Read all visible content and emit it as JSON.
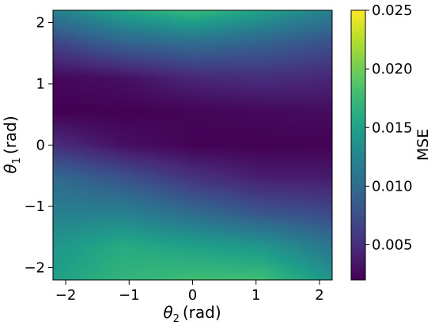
{
  "chart_data": {
    "type": "heatmap",
    "title": "",
    "xlabel": {
      "symbol": "θ",
      "subscript": "2",
      "unit": "(rad)"
    },
    "ylabel": {
      "symbol": "θ",
      "subscript": "1",
      "unit": "(rad)"
    },
    "xlim": [
      -2.2,
      2.2
    ],
    "ylim": [
      -2.2,
      2.2
    ],
    "xticks": [
      -2,
      -1,
      0,
      1,
      2
    ],
    "yticks": [
      -2,
      -1,
      0,
      1,
      2
    ],
    "xtick_labels": [
      "−2",
      "−1",
      "0",
      "1",
      "2"
    ],
    "ytick_labels": [
      "−2",
      "−1",
      "0",
      "1",
      "2"
    ],
    "colorbar": {
      "label": "MSE",
      "colormap": "viridis",
      "vmin": 0.002,
      "vmax": 0.025,
      "ticks": [
        0.005,
        0.01,
        0.015,
        0.02,
        0.025
      ],
      "tick_labels": [
        "0.005",
        "0.010",
        "0.015",
        "0.020",
        "0.025"
      ]
    },
    "theta2_grid": [
      -2.2,
      -1.1,
      0.0,
      1.1,
      2.2
    ],
    "theta1_grid": [
      2.2,
      1.65,
      1.1,
      0.55,
      0.0,
      -0.55,
      -1.1,
      -1.65,
      -2.2
    ],
    "mse_grid": [
      [
        0.012,
        0.0155,
        0.0175,
        0.015,
        0.012
      ],
      [
        0.0065,
        0.009,
        0.01,
        0.009,
        0.0075
      ],
      [
        0.0024,
        0.003,
        0.0045,
        0.005,
        0.0045
      ],
      [
        0.002,
        0.002,
        0.0022,
        0.0025,
        0.0028
      ],
      [
        0.005,
        0.003,
        0.0021,
        0.002,
        0.0021
      ],
      [
        0.01,
        0.008,
        0.0055,
        0.004,
        0.0038
      ],
      [
        0.012,
        0.012,
        0.01,
        0.008,
        0.007
      ],
      [
        0.014,
        0.016,
        0.015,
        0.014,
        0.011
      ],
      [
        0.015,
        0.017,
        0.018,
        0.018,
        0.014
      ]
    ]
  }
}
